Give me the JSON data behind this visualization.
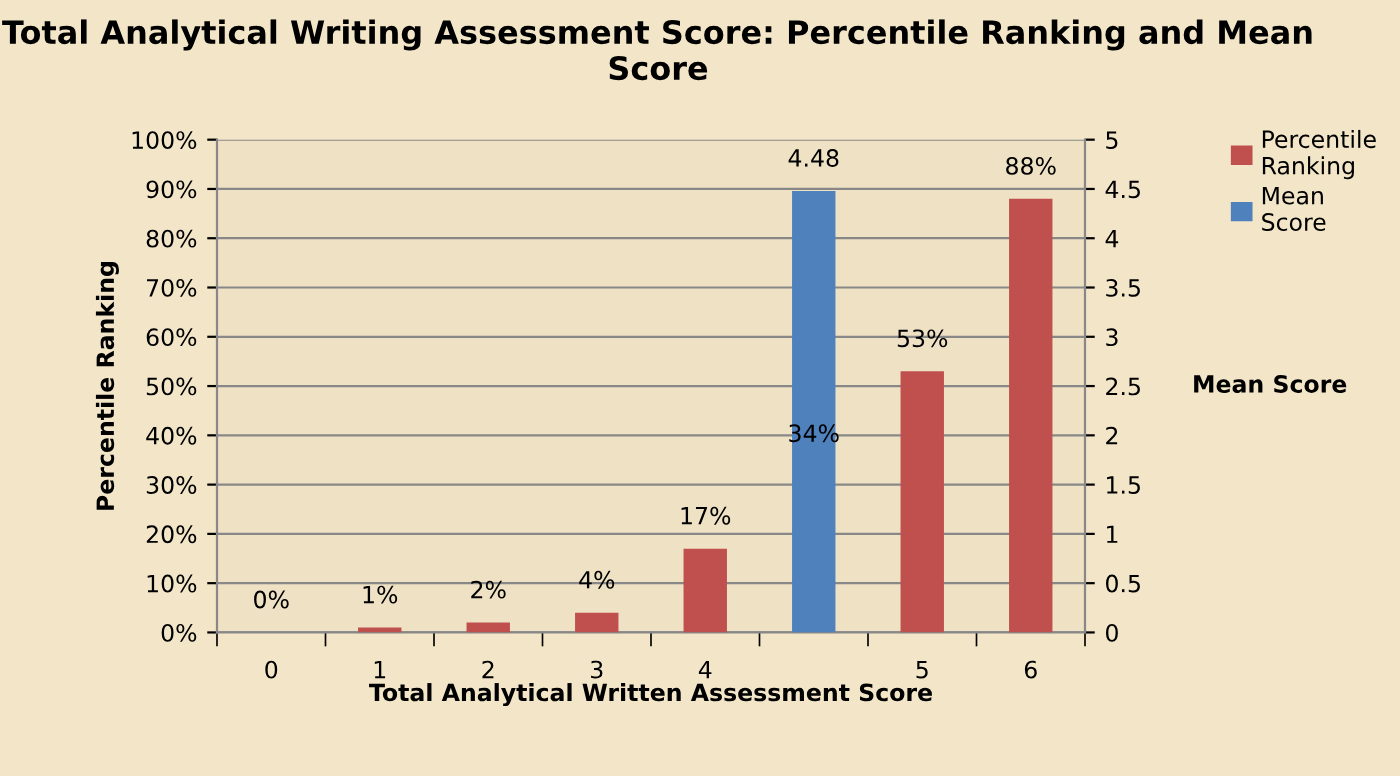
{
  "chart_data": {
    "type": "bar",
    "title": "Total Analytical Writing Assessment Score: Percentile Ranking and Mean Score",
    "xlabel": "Total Analytical Written Assessment Score",
    "ylabel": "Percentile Ranking",
    "y2label": "Mean Score",
    "categories": [
      "0",
      "1",
      "2",
      "3",
      "4",
      null,
      "5",
      "6"
    ],
    "series": [
      {
        "name": "Percentile Ranking",
        "color": "#c0504d",
        "values": [
          0,
          1,
          2,
          4,
          17,
          null,
          53,
          88
        ],
        "value_labels": [
          "0%",
          "1%",
          "2%",
          "4%",
          "17%",
          null,
          "53%",
          "88%"
        ]
      },
      {
        "name": "Mean Score",
        "color": "#4f81bd",
        "axis": "y2",
        "values": [
          null,
          null,
          null,
          null,
          null,
          4.48,
          null,
          null
        ],
        "value_labels": [
          null,
          null,
          null,
          null,
          null,
          "4.48",
          null,
          null
        ]
      }
    ],
    "annotations": [
      "34%"
    ],
    "ylim": [
      0,
      100
    ],
    "yticks": [
      {
        "value": 0,
        "label": "0%"
      },
      {
        "value": 10,
        "label": "10%"
      },
      {
        "value": 20,
        "label": "20%"
      },
      {
        "value": 30,
        "label": "30%"
      },
      {
        "value": 40,
        "label": "40%"
      },
      {
        "value": 50,
        "label": "50%"
      },
      {
        "value": 60,
        "label": "60%"
      },
      {
        "value": 70,
        "label": "70%"
      },
      {
        "value": 80,
        "label": "80%"
      },
      {
        "value": 90,
        "label": "90%"
      },
      {
        "value": 100,
        "label": "100%"
      }
    ],
    "y2lim": [
      0,
      5
    ],
    "y2ticks": [
      0,
      0.5,
      1,
      1.5,
      2,
      2.5,
      3,
      3.5,
      4,
      4.5,
      5
    ],
    "grid": "y",
    "legend": "right"
  }
}
